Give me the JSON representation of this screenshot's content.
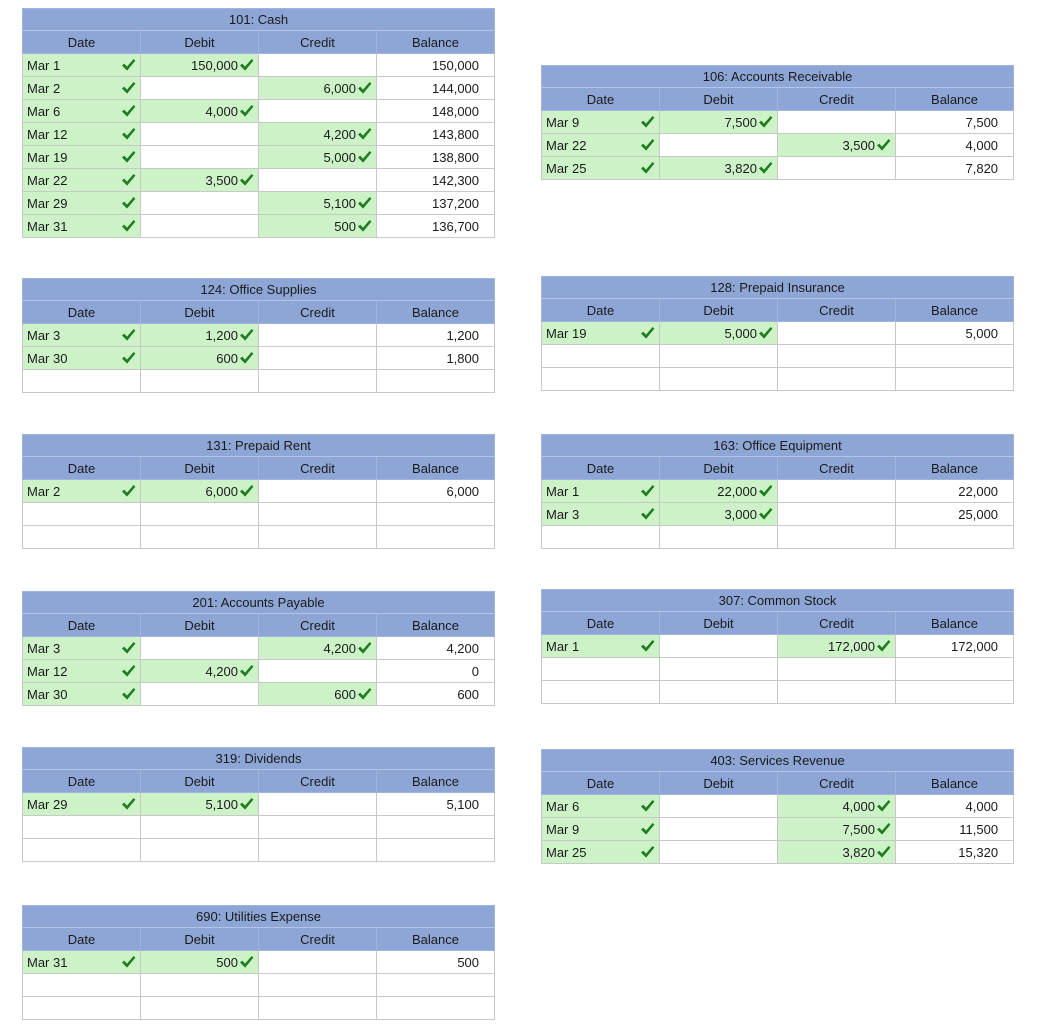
{
  "accounts": [
    {
      "title": "101: Cash",
      "headers": [
        "Date",
        "Debit",
        "Credit",
        "Balance"
      ],
      "rows": [
        {
          "date": "Mar 1",
          "debit": "150,000",
          "credit": "",
          "balance": "150,000"
        },
        {
          "date": "Mar 2",
          "debit": "",
          "credit": "6,000",
          "balance": "144,000"
        },
        {
          "date": "Mar 6",
          "debit": "4,000",
          "credit": "",
          "balance": "148,000"
        },
        {
          "date": "Mar 12",
          "debit": "",
          "credit": "4,200",
          "balance": "143,800"
        },
        {
          "date": "Mar 19",
          "debit": "",
          "credit": "5,000",
          "balance": "138,800"
        },
        {
          "date": "Mar 22",
          "debit": "3,500",
          "credit": "",
          "balance": "142,300"
        },
        {
          "date": "Mar 29",
          "debit": "",
          "credit": "5,100",
          "balance": "137,200"
        },
        {
          "date": "Mar 31",
          "debit": "",
          "credit": "500",
          "balance": "136,700"
        }
      ]
    },
    {
      "title": "106: Accounts Receivable",
      "headers": [
        "Date",
        "Debit",
        "Credit",
        "Balance"
      ],
      "rows": [
        {
          "date": "Mar 9",
          "debit": "7,500",
          "credit": "",
          "balance": "7,500"
        },
        {
          "date": "Mar 22",
          "debit": "",
          "credit": "3,500",
          "balance": "4,000"
        },
        {
          "date": "Mar 25",
          "debit": "3,820",
          "credit": "",
          "balance": "7,820"
        }
      ]
    },
    {
      "title": "124: Office Supplies",
      "headers": [
        "Date",
        "Debit",
        "Credit",
        "Balance"
      ],
      "rows": [
        {
          "date": "Mar 3",
          "debit": "1,200",
          "credit": "",
          "balance": "1,200"
        },
        {
          "date": "Mar 30",
          "debit": "600",
          "credit": "",
          "balance": "1,800"
        }
      ]
    },
    {
      "title": "128: Prepaid Insurance",
      "headers": [
        "Date",
        "Debit",
        "Credit",
        "Balance"
      ],
      "rows": [
        {
          "date": "Mar 19",
          "debit": "5,000",
          "credit": "",
          "balance": "5,000"
        }
      ]
    },
    {
      "title": "131: Prepaid Rent",
      "headers": [
        "Date",
        "Debit",
        "Credit",
        "Balance"
      ],
      "rows": [
        {
          "date": "Mar 2",
          "debit": "6,000",
          "credit": "",
          "balance": "6,000"
        }
      ]
    },
    {
      "title": "163: Office Equipment",
      "headers": [
        "Date",
        "Debit",
        "Credit",
        "Balance"
      ],
      "rows": [
        {
          "date": "Mar 1",
          "debit": "22,000",
          "credit": "",
          "balance": "22,000"
        },
        {
          "date": "Mar 3",
          "debit": "3,000",
          "credit": "",
          "balance": "25,000"
        }
      ]
    },
    {
      "title": "201: Accounts Payable",
      "headers": [
        "Date",
        "Debit",
        "Credit",
        "Balance"
      ],
      "rows": [
        {
          "date": "Mar 3",
          "debit": "",
          "credit": "4,200",
          "balance": "4,200"
        },
        {
          "date": "Mar 12",
          "debit": "4,200",
          "credit": "",
          "balance": "0"
        },
        {
          "date": "Mar 30",
          "debit": "",
          "credit": "600",
          "balance": "600"
        }
      ]
    },
    {
      "title": "307: Common Stock",
      "headers": [
        "Date",
        "Debit",
        "Credit",
        "Balance"
      ],
      "rows": [
        {
          "date": "Mar 1",
          "debit": "",
          "credit": "172,000",
          "balance": "172,000"
        }
      ]
    },
    {
      "title": "319: Dividends",
      "headers": [
        "Date",
        "Debit",
        "Credit",
        "Balance"
      ],
      "rows": [
        {
          "date": "Mar 29",
          "debit": "5,100",
          "credit": "",
          "balance": "5,100"
        }
      ]
    },
    {
      "title": "403: Services Revenue",
      "headers": [
        "Date",
        "Debit",
        "Credit",
        "Balance"
      ],
      "rows": [
        {
          "date": "Mar 6",
          "debit": "",
          "credit": "4,000",
          "balance": "4,000"
        },
        {
          "date": "Mar 9",
          "debit": "",
          "credit": "7,500",
          "balance": "11,500"
        },
        {
          "date": "Mar 25",
          "debit": "",
          "credit": "3,820",
          "balance": "15,320"
        }
      ]
    },
    {
      "title": "690: Utilities Expense",
      "headers": [
        "Date",
        "Debit",
        "Credit",
        "Balance"
      ],
      "rows": [
        {
          "date": "Mar 31",
          "debit": "500",
          "credit": "",
          "balance": "500"
        }
      ]
    }
  ],
  "icons": {
    "correct_mark": "checkmark-icon",
    "check_color": "#1e7d1e"
  },
  "colors": {
    "header_bg": "#8ea6d6",
    "entry_bg": "#cdf2c8"
  }
}
